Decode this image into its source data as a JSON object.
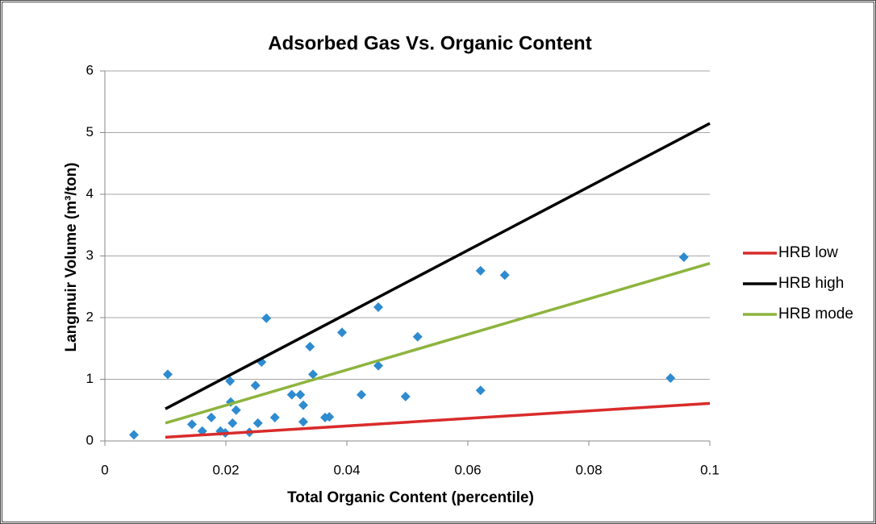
{
  "chart_data": {
    "type": "scatter",
    "title": "Adsorbed Gas Vs. Organic Content",
    "x_label": "Total Organic Content (percentile)",
    "y_label": "Langmuir Volume (m³/ton)",
    "xlim": [
      0,
      0.1
    ],
    "ylim": [
      0,
      6
    ],
    "xticks": [
      0,
      0.02,
      0.04,
      0.06,
      0.08,
      0.1
    ],
    "yticks": [
      0,
      1,
      2,
      3,
      4,
      5,
      6
    ],
    "grid": true,
    "legend": "right",
    "series": [
      {
        "type": "scatter",
        "color": "#2e8bd0",
        "x": [
          0.0048,
          0.0104,
          0.0144,
          0.0161,
          0.0176,
          0.0191,
          0.0199,
          0.0207,
          0.0208,
          0.0211,
          0.0217,
          0.0239,
          0.0249,
          0.0253,
          0.0259,
          0.0267,
          0.0281,
          0.0309,
          0.0323,
          0.0328,
          0.0328,
          0.0339,
          0.0344,
          0.0364,
          0.0371,
          0.0392,
          0.0424,
          0.0452,
          0.0452,
          0.0497,
          0.0517,
          0.0621,
          0.0621,
          0.0661,
          0.0935,
          0.0957
        ],
        "values": [
          0.1,
          1.08,
          0.27,
          0.16,
          0.38,
          0.16,
          0.13,
          0.97,
          0.63,
          0.29,
          0.5,
          0.14,
          0.9,
          0.29,
          1.28,
          1.99,
          0.38,
          0.75,
          0.75,
          0.58,
          0.31,
          1.53,
          1.08,
          0.38,
          0.39,
          1.76,
          0.75,
          2.17,
          1.22,
          0.72,
          1.69,
          2.76,
          0.82,
          2.69,
          1.02,
          2.98
        ]
      },
      {
        "type": "line",
        "name": "HRB low",
        "color": "#d92b2b",
        "x": [
          0.01,
          0.1
        ],
        "values": [
          0.06,
          0.61
        ]
      },
      {
        "type": "line",
        "name": "HRB high",
        "color": "#000000",
        "x": [
          0.01,
          0.1
        ],
        "values": [
          0.52,
          5.15
        ]
      },
      {
        "type": "line",
        "name": "HRB mode",
        "color": "#8db43e",
        "x": [
          0.01,
          0.1
        ],
        "values": [
          0.29,
          2.88
        ]
      }
    ]
  }
}
